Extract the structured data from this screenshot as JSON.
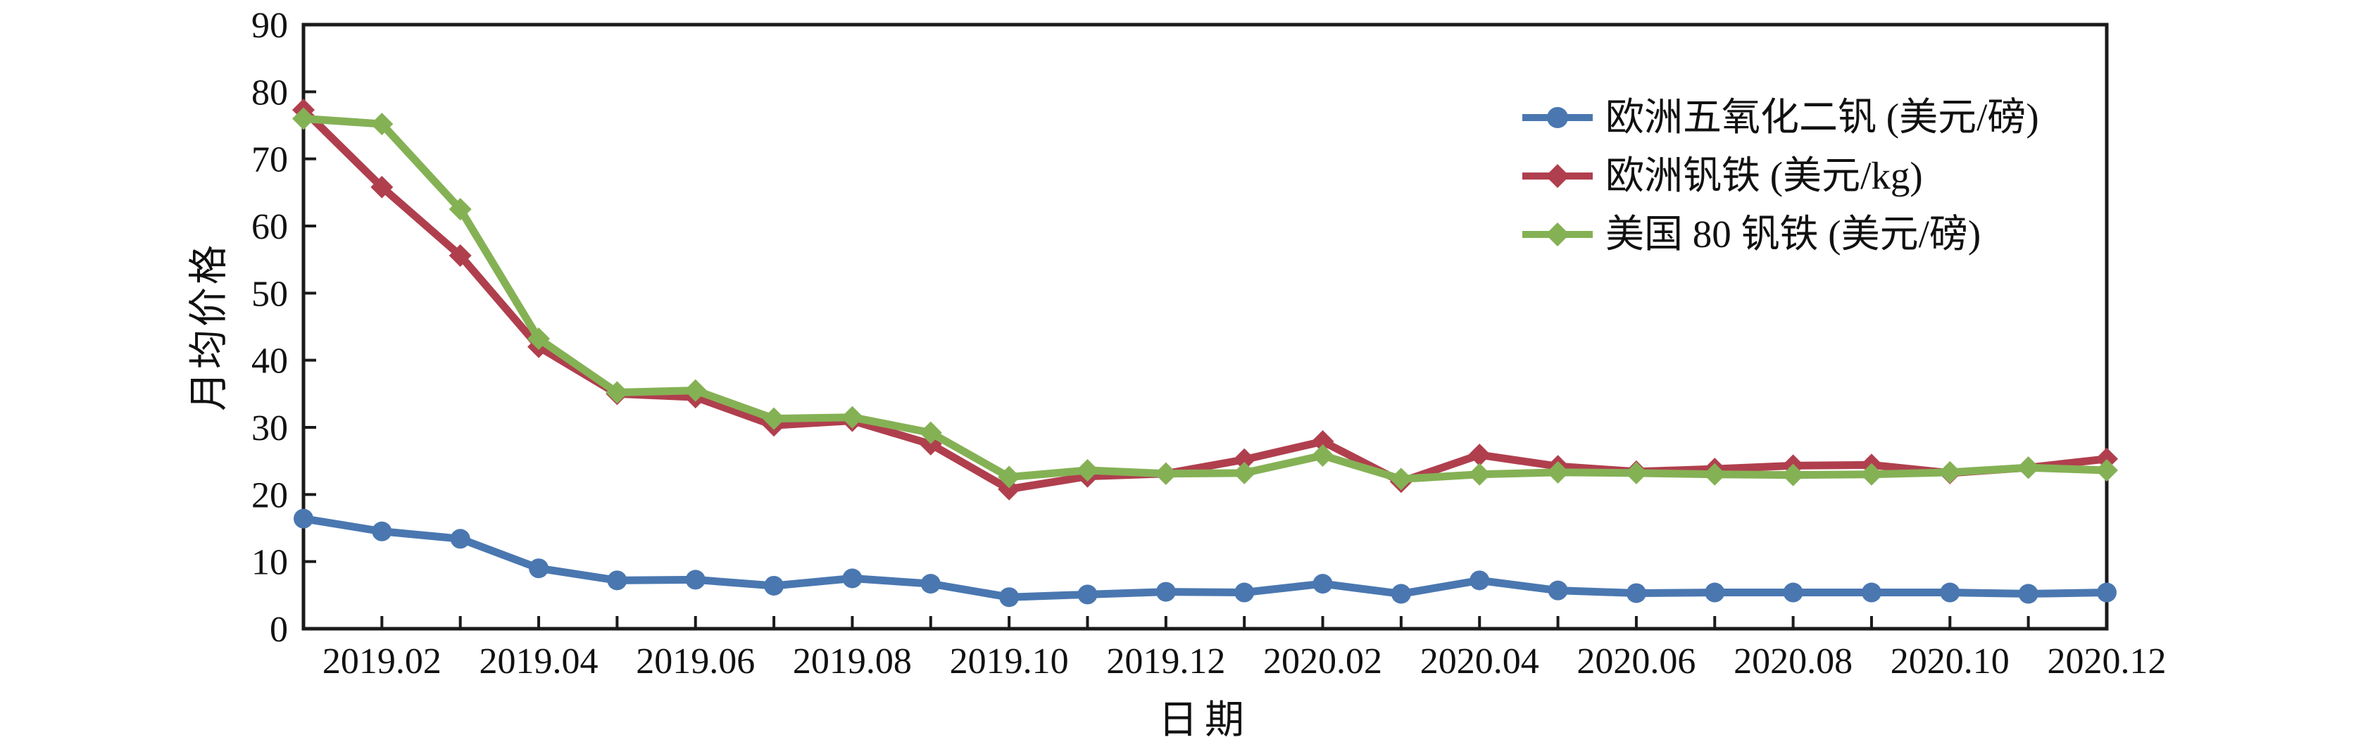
{
  "figure": {
    "ylabel": "月均价格",
    "xlabel": "日期",
    "background": "#ffffff",
    "axis_color": "#1a1a1a"
  },
  "chart_data": {
    "type": "line",
    "title": "",
    "xlabel": "日期",
    "ylabel": "月均价格",
    "ylim": [
      0,
      90
    ],
    "ytick_step": 10,
    "grid": false,
    "legend_position": "upper-right-inside",
    "x": [
      "2019.01",
      "2019.02",
      "2019.03",
      "2019.04",
      "2019.05",
      "2019.06",
      "2019.07",
      "2019.08",
      "2019.09",
      "2019.10",
      "2019.11",
      "2019.12",
      "2020.01",
      "2020.02",
      "2020.03",
      "2020.04",
      "2020.05",
      "2020.06",
      "2020.07",
      "2020.08",
      "2020.09",
      "2020.10",
      "2020.11",
      "2020.12"
    ],
    "x_labeled_ticks": [
      "2019.02",
      "2019.04",
      "2019.06",
      "2019.08",
      "2019.10",
      "2019.12",
      "2020.02",
      "2020.04",
      "2020.06",
      "2020.08",
      "2020.10",
      "2020.12"
    ],
    "series": [
      {
        "name": "欧洲五氧化二钒 (美元/磅)",
        "color": "#4A77B0",
        "marker": "circle",
        "values": [
          16.4,
          14.5,
          13.4,
          9.0,
          7.2,
          7.3,
          6.4,
          7.5,
          6.7,
          4.7,
          5.1,
          5.5,
          5.4,
          6.7,
          5.2,
          7.2,
          5.7,
          5.3,
          5.4,
          5.4,
          5.4,
          5.4,
          5.2,
          5.4
        ]
      },
      {
        "name": "欧洲钒铁 (美元/kg)",
        "color": "#B03F4E",
        "marker": "diamond",
        "values": [
          77.3,
          65.8,
          55.6,
          42.0,
          35.0,
          34.5,
          30.3,
          31.0,
          27.5,
          20.8,
          22.7,
          23.1,
          25.2,
          27.9,
          21.9,
          25.9,
          24.2,
          23.4,
          23.8,
          24.3,
          24.4,
          23.2,
          24.0,
          25.3
        ]
      },
      {
        "name": "美国 80 钒铁 (美元/磅)",
        "color": "#85B155",
        "marker": "diamond",
        "values": [
          76.0,
          75.2,
          62.5,
          43.2,
          35.2,
          35.5,
          31.3,
          31.5,
          29.2,
          22.6,
          23.6,
          23.1,
          23.2,
          25.8,
          22.3,
          23.0,
          23.3,
          23.2,
          23.0,
          22.9,
          23.0,
          23.3,
          24.0,
          23.6
        ]
      }
    ]
  }
}
